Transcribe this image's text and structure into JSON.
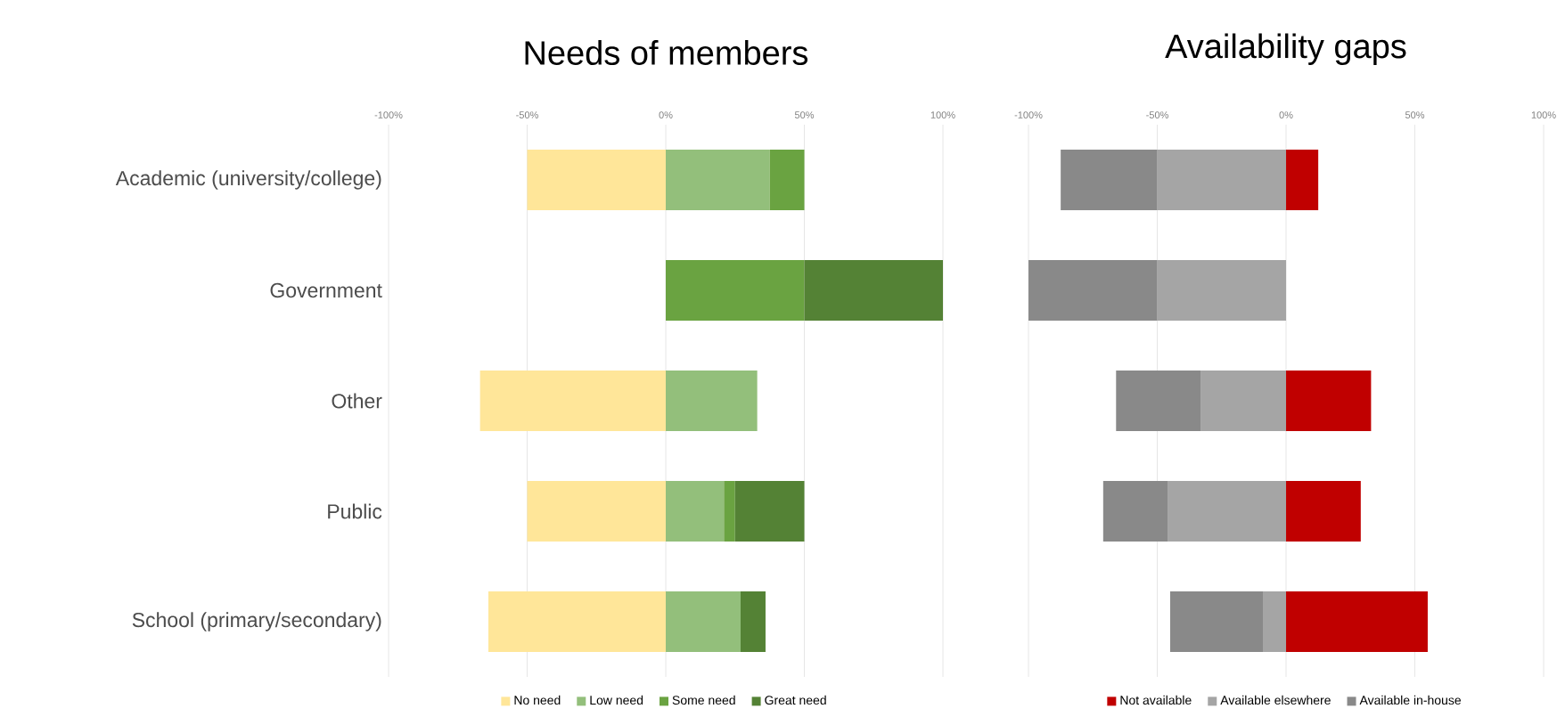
{
  "chart_data": [
    {
      "type": "bar",
      "orientation": "horizontal",
      "stacked": true,
      "title": "Needs of members",
      "categories": [
        "Academic (university/college)",
        "Government",
        "Other",
        "Public",
        "School (primary/secondary)"
      ],
      "series": [
        {
          "name": "No need",
          "color": "#ffe699",
          "values": [
            -50,
            0,
            -67,
            -50,
            -64
          ]
        },
        {
          "name": "Low need",
          "color": "#93bf7b",
          "values": [
            37.5,
            0,
            33,
            21,
            27
          ]
        },
        {
          "name": "Some need",
          "color": "#6aa341",
          "values": [
            12.5,
            50,
            0,
            4,
            0
          ]
        },
        {
          "name": "Great need",
          "color": "#548235",
          "values": [
            0,
            50,
            0,
            25,
            9
          ]
        }
      ],
      "xlim": [
        -100,
        100
      ],
      "xticks": [
        {
          "value": -100,
          "label": "-100%"
        },
        {
          "value": -50,
          "label": "-50%"
        },
        {
          "value": 0,
          "label": "0%"
        },
        {
          "value": 50,
          "label": "50%"
        },
        {
          "value": 100,
          "label": "100%"
        }
      ],
      "grid": "x",
      "legend": "bottom"
    },
    {
      "type": "bar",
      "orientation": "horizontal",
      "stacked": true,
      "title": "Availability gaps",
      "categories": [
        null,
        null,
        null,
        null,
        null
      ],
      "series": [
        {
          "name": "Not available",
          "color": "#c00000",
          "values": [
            12.5,
            0,
            33,
            29,
            55
          ]
        },
        {
          "name": "Available elsewhere",
          "color": "#a5a5a5",
          "values": [
            -50,
            -50,
            -33,
            -46,
            -9
          ]
        },
        {
          "name": "Available in-house",
          "color": "#898989",
          "values": [
            -37.5,
            -50,
            -33,
            -25,
            -36
          ]
        }
      ],
      "xlim": [
        -100,
        100
      ],
      "xticks": [
        {
          "value": -100,
          "label": "-100%"
        },
        {
          "value": -50,
          "label": "-50%"
        },
        {
          "value": 0,
          "label": "0%"
        },
        {
          "value": 50,
          "label": "50%"
        },
        {
          "value": 100,
          "label": "100%"
        }
      ],
      "grid": "x",
      "legend": "bottom",
      "tick_labels": "x"
    }
  ]
}
